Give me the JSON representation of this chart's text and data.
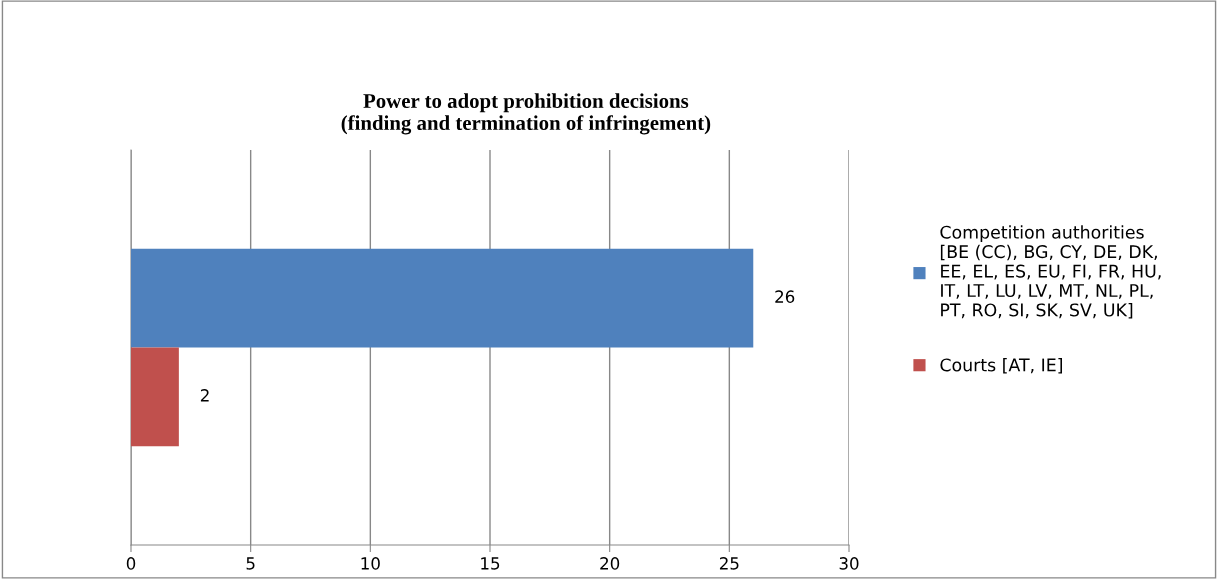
{
  "chart_data": {
    "type": "bar",
    "orientation": "horizontal",
    "title": "Power to adopt prohibition decisions\n(finding and termination of infringement)",
    "categories": [
      null
    ],
    "series": [
      {
        "name": "Competition authorities\n[BE (CC), BG, CY, DE, DK,\nEE, EL, ES, EU, FI, FR, HU,\nIT, LT, LU, LV, MT, NL, PL,\nPT, RO, SI, SK, SV, UK]",
        "color": "#4f81bd",
        "values": [
          26
        ]
      },
      {
        "name": "Courts [AT, IE]",
        "color": "#c0504d",
        "values": [
          2
        ]
      }
    ],
    "xlim": [
      0,
      30
    ],
    "xticks": [
      0,
      5,
      10,
      15,
      20,
      25,
      30
    ],
    "grid": "x",
    "legend": "right",
    "data_labels": true
  }
}
